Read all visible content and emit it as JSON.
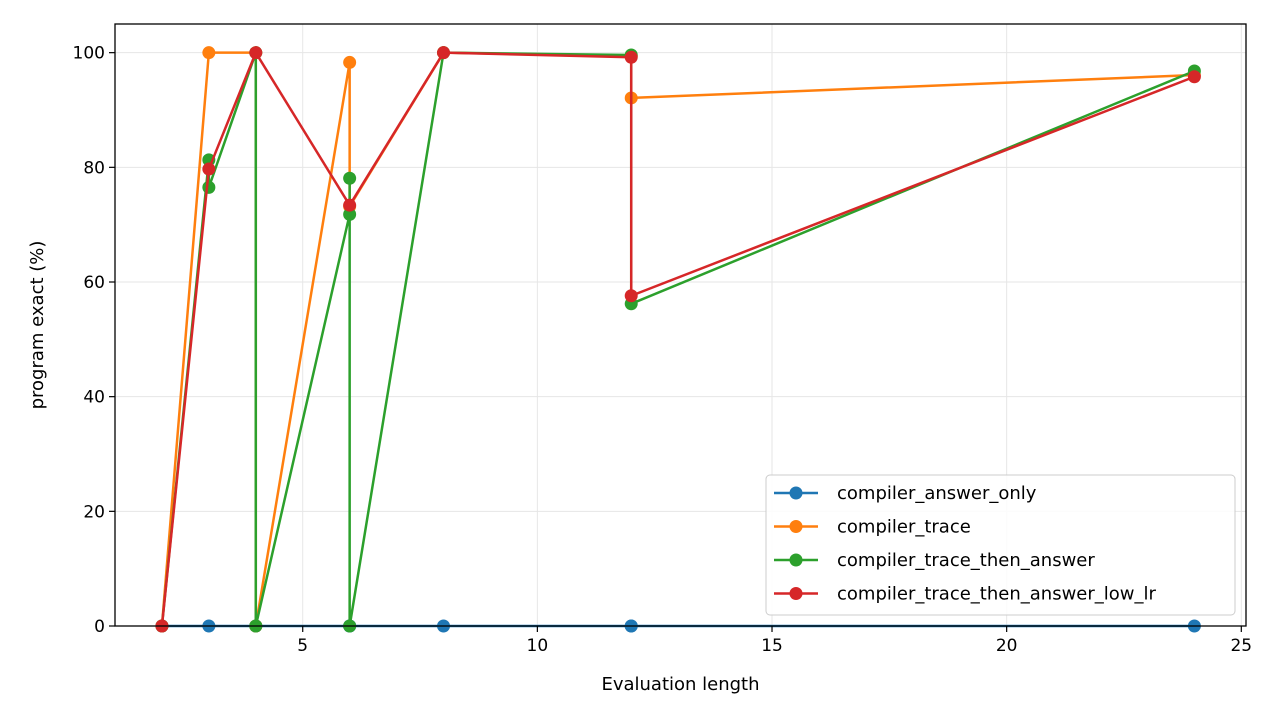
{
  "chart_data": {
    "type": "line",
    "title": "",
    "xlabel": "Evaluation length",
    "ylabel": "program exact (%)",
    "xlim": [
      1,
      25.1
    ],
    "ylim": [
      0,
      105
    ],
    "xticks": [
      5,
      10,
      15,
      20,
      25
    ],
    "yticks": [
      0,
      20,
      40,
      60,
      80,
      100
    ],
    "grid": true,
    "legend_position": "lower-right",
    "series": [
      {
        "name": "compiler_answer_only",
        "color": "#1f77b4",
        "points": [
          [
            2,
            0
          ],
          [
            3,
            0
          ],
          [
            4,
            0
          ],
          [
            4,
            0
          ],
          [
            6,
            0
          ],
          [
            6,
            0
          ],
          [
            8,
            0
          ],
          [
            12,
            0
          ],
          [
            12,
            0
          ],
          [
            24,
            0
          ]
        ]
      },
      {
        "name": "compiler_trace",
        "color": "#ff7f0e",
        "points": [
          [
            2,
            0
          ],
          [
            3,
            100
          ],
          [
            4,
            100
          ],
          [
            4,
            0
          ],
          [
            6,
            98.3
          ],
          [
            6,
            73.2
          ],
          [
            8,
            100
          ],
          [
            12,
            99.4
          ],
          [
            12,
            92.1
          ],
          [
            24,
            96.1
          ]
        ]
      },
      {
        "name": "compiler_trace_then_answer",
        "color": "#2ca02c",
        "points": [
          [
            2,
            0
          ],
          [
            3,
            81.3
          ],
          [
            3,
            76.5
          ],
          [
            4,
            100
          ],
          [
            4,
            0
          ],
          [
            6,
            71.8
          ],
          [
            6,
            78.1
          ],
          [
            6,
            0
          ],
          [
            8,
            100
          ],
          [
            12,
            99.6
          ],
          [
            12,
            56.2
          ],
          [
            24,
            96.8
          ]
        ]
      },
      {
        "name": "compiler_trace_then_answer_low_lr",
        "color": "#d62728",
        "points": [
          [
            2,
            0
          ],
          [
            3,
            79.7
          ],
          [
            4,
            100
          ],
          [
            6,
            73.4
          ],
          [
            8,
            100
          ],
          [
            12,
            99.2
          ],
          [
            12,
            57.6
          ],
          [
            24,
            95.8
          ]
        ]
      }
    ]
  }
}
